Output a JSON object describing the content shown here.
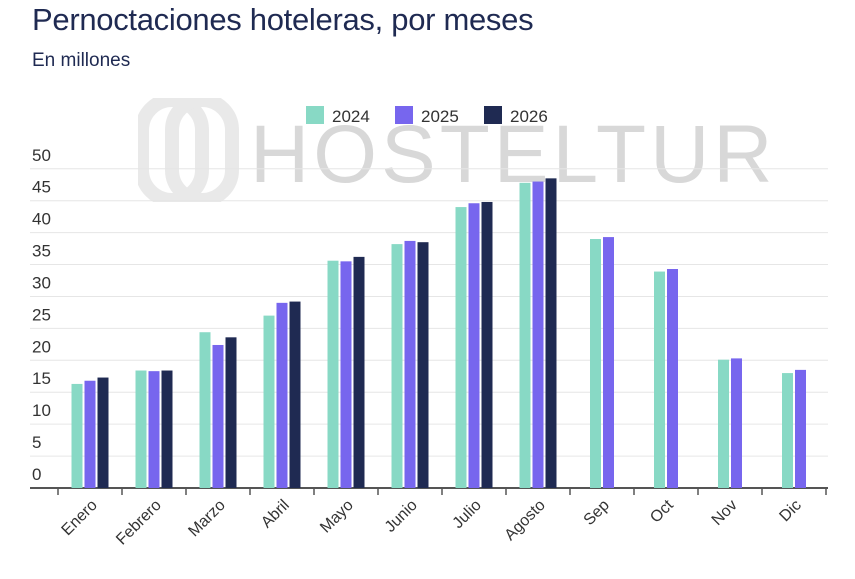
{
  "title": "Pernoctaciones hoteleras, por meses",
  "subtitle": "En millones",
  "watermark": "HOSTELTUR",
  "chart_data": {
    "type": "bar",
    "categories": [
      "Enero",
      "Febrero",
      "Marzo",
      "Abril",
      "Mayo",
      "Junio",
      "Julio",
      "Agosto",
      "Sep",
      "Oct",
      "Nov",
      "Dic"
    ],
    "series": [
      {
        "name": "2024",
        "color": "#88d9c5",
        "values": [
          16.3,
          18.4,
          24.4,
          27.0,
          35.6,
          38.2,
          44.0,
          47.8,
          39.0,
          33.9,
          20.1,
          18.0
        ]
      },
      {
        "name": "2025",
        "color": "#7766ee",
        "values": [
          16.8,
          18.3,
          22.4,
          29.0,
          35.5,
          38.7,
          44.6,
          48.0,
          39.3,
          34.3,
          20.3,
          18.5
        ]
      },
      {
        "name": "2026",
        "color": "#1f2a52",
        "values": [
          17.3,
          18.4,
          23.6,
          29.2,
          36.2,
          38.5,
          44.8,
          48.5,
          null,
          null,
          null,
          null
        ]
      }
    ],
    "yticks": [
      0,
      5,
      10,
      15,
      20,
      25,
      30,
      35,
      40,
      45,
      50
    ],
    "ylim": [
      0,
      52
    ],
    "grid": true,
    "legend": "top-center"
  }
}
